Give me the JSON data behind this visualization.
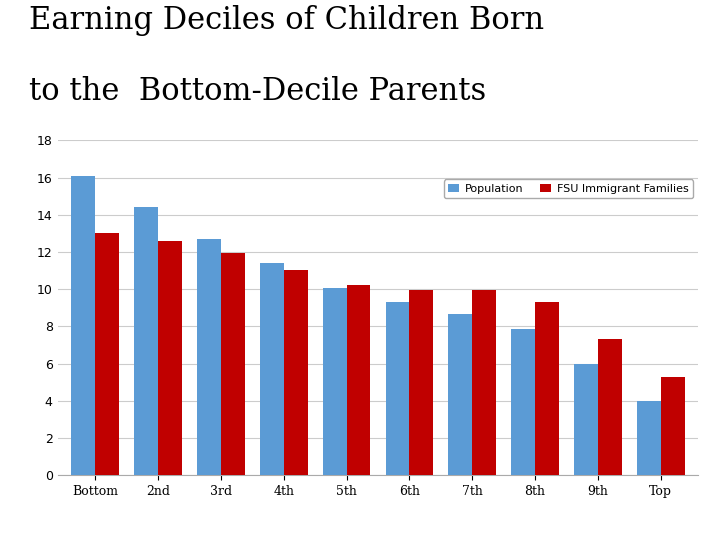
{
  "title_line1": "Earning Deciles of Children Born",
  "title_line2": "to the  Bottom-Decile Parents",
  "categories": [
    "Bottom",
    "2nd",
    "3rd",
    "4th",
    "5th",
    "6th",
    "7th",
    "8th",
    "9th",
    "Top"
  ],
  "population": [
    16.1,
    14.4,
    12.7,
    11.4,
    10.05,
    9.3,
    8.65,
    7.85,
    6.0,
    4.0
  ],
  "fsu": [
    13.0,
    12.6,
    11.95,
    11.05,
    10.2,
    9.95,
    9.95,
    9.3,
    7.3,
    5.3
  ],
  "pop_color": "#5B9BD5",
  "fsu_color": "#C00000",
  "ylim": [
    0,
    18
  ],
  "yticks": [
    0,
    2,
    4,
    6,
    8,
    10,
    12,
    14,
    16,
    18
  ],
  "legend_pop": "Population",
  "legend_fsu": "FSU Immigrant Families",
  "bar_width": 0.38,
  "title_fontsize": 22,
  "title_color": "#000000",
  "bg_color": "#FFFFFF",
  "grid_color": "#CCCCCC",
  "tick_fontsize": 9,
  "legend_fontsize": 8
}
